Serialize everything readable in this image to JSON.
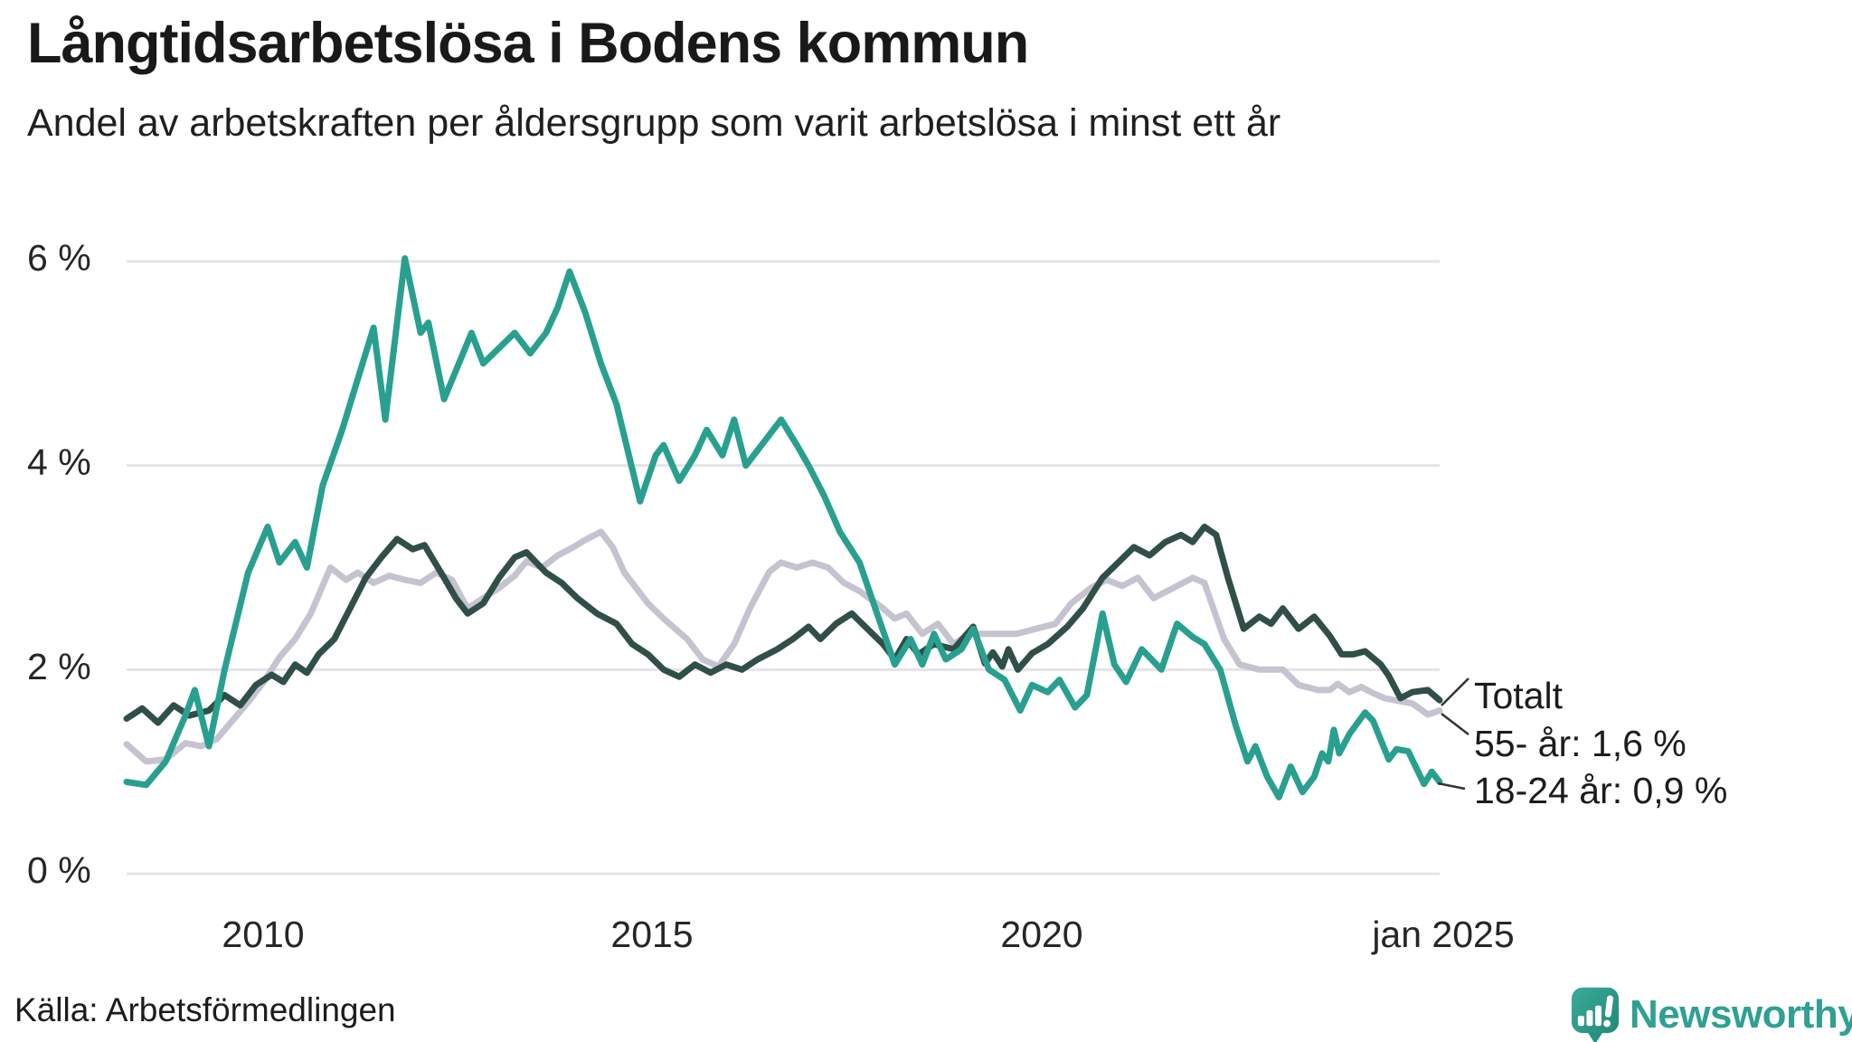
{
  "header": {
    "title": "Långtidsarbetslösa i Bodens kommun",
    "subtitle": "Andel av arbetskraften per åldersgrupp som varit arbetslösa i minst ett år"
  },
  "footer": {
    "source": "Källa: Arbetsförmedlingen",
    "brand": "Newsworthy",
    "logo_icon": "speech-bubble-bar-chart-icon"
  },
  "colors": {
    "teal": "#29A08F",
    "dark": "#2F4F48",
    "gray": "#C6C3D1",
    "grid": "#E4E4E8",
    "connector": "#333333",
    "text": "#1c1c1c",
    "brand_teal": "#2FA092",
    "brand_teal_dark": "#1F8577"
  },
  "chart_data": {
    "type": "line",
    "title": "Långtidsarbetslösa i Bodens kommun",
    "subtitle": "Andel av arbetskraften per åldersgrupp som varit arbetslösa i minst ett år",
    "xlabel": "",
    "ylabel": "",
    "unit": "%",
    "grid": true,
    "legend_position": "right-annotations",
    "ylim": [
      0,
      6.4
    ],
    "x_range": [
      2008.25,
      2025.0
    ],
    "y_ticks": [
      {
        "value": 6,
        "label": "6 %"
      },
      {
        "value": 4,
        "label": "4 %"
      },
      {
        "value": 2,
        "label": "2 %"
      },
      {
        "value": 0,
        "label": "0 %"
      }
    ],
    "x_ticks": [
      {
        "value": 2010,
        "label": "2010"
      },
      {
        "value": 2015,
        "label": "2015"
      },
      {
        "value": 2020,
        "label": "2020"
      },
      {
        "value": 2025,
        "label": "jan 2025"
      }
    ],
    "annotations": [
      {
        "series": "Totalt",
        "label": "Totalt"
      },
      {
        "series": "55- år",
        "label": "55- år: 1,6 %",
        "end_value": 1.6
      },
      {
        "series": "18-24 år",
        "label": "18-24 år: 0,9 %",
        "end_value": 0.9
      }
    ],
    "series": [
      {
        "name": "55- år",
        "color_key": "gray",
        "end_label": "55- år: 1,6 %",
        "points": [
          [
            2008.25,
            1.27
          ],
          [
            2008.5,
            1.1
          ],
          [
            2008.75,
            1.12
          ],
          [
            2009.0,
            1.28
          ],
          [
            2009.2,
            1.25
          ],
          [
            2009.4,
            1.32
          ],
          [
            2009.6,
            1.5
          ],
          [
            2009.8,
            1.68
          ],
          [
            2010.0,
            1.88
          ],
          [
            2010.2,
            2.12
          ],
          [
            2010.4,
            2.3
          ],
          [
            2010.6,
            2.55
          ],
          [
            2010.85,
            3.0
          ],
          [
            2011.05,
            2.88
          ],
          [
            2011.2,
            2.95
          ],
          [
            2011.4,
            2.85
          ],
          [
            2011.6,
            2.92
          ],
          [
            2011.8,
            2.88
          ],
          [
            2012.0,
            2.85
          ],
          [
            2012.2,
            2.95
          ],
          [
            2012.4,
            2.88
          ],
          [
            2012.6,
            2.6
          ],
          [
            2012.8,
            2.7
          ],
          [
            2013.0,
            2.8
          ],
          [
            2013.2,
            2.92
          ],
          [
            2013.35,
            3.06
          ],
          [
            2013.55,
            3.0
          ],
          [
            2013.75,
            3.12
          ],
          [
            2013.95,
            3.2
          ],
          [
            2014.1,
            3.27
          ],
          [
            2014.3,
            3.35
          ],
          [
            2014.45,
            3.2
          ],
          [
            2014.6,
            2.95
          ],
          [
            2014.9,
            2.65
          ],
          [
            2015.1,
            2.5
          ],
          [
            2015.4,
            2.3
          ],
          [
            2015.6,
            2.1
          ],
          [
            2015.8,
            2.03
          ],
          [
            2016.0,
            2.25
          ],
          [
            2016.2,
            2.6
          ],
          [
            2016.45,
            2.96
          ],
          [
            2016.6,
            3.05
          ],
          [
            2016.8,
            3.0
          ],
          [
            2017.0,
            3.05
          ],
          [
            2017.2,
            3.0
          ],
          [
            2017.4,
            2.85
          ],
          [
            2017.6,
            2.77
          ],
          [
            2017.9,
            2.6
          ],
          [
            2018.05,
            2.5
          ],
          [
            2018.2,
            2.55
          ],
          [
            2018.4,
            2.35
          ],
          [
            2018.6,
            2.45
          ],
          [
            2018.8,
            2.25
          ],
          [
            2019.0,
            2.35
          ],
          [
            2019.3,
            2.35
          ],
          [
            2019.6,
            2.35
          ],
          [
            2019.85,
            2.4
          ],
          [
            2020.1,
            2.45
          ],
          [
            2020.3,
            2.65
          ],
          [
            2020.55,
            2.8
          ],
          [
            2020.75,
            2.88
          ],
          [
            2020.95,
            2.82
          ],
          [
            2021.15,
            2.9
          ],
          [
            2021.35,
            2.7
          ],
          [
            2021.6,
            2.8
          ],
          [
            2021.85,
            2.9
          ],
          [
            2022.0,
            2.85
          ],
          [
            2022.25,
            2.3
          ],
          [
            2022.45,
            2.05
          ],
          [
            2022.7,
            2.0
          ],
          [
            2023.0,
            2.0
          ],
          [
            2023.2,
            1.85
          ],
          [
            2023.45,
            1.8
          ],
          [
            2023.6,
            1.8
          ],
          [
            2023.7,
            1.86
          ],
          [
            2023.85,
            1.78
          ],
          [
            2024.0,
            1.83
          ],
          [
            2024.15,
            1.77
          ],
          [
            2024.3,
            1.72
          ],
          [
            2024.5,
            1.69
          ],
          [
            2024.65,
            1.67
          ],
          [
            2024.85,
            1.56
          ],
          [
            2025.0,
            1.6
          ]
        ]
      },
      {
        "name": "Totalt",
        "color_key": "dark",
        "end_label": "Totalt",
        "points": [
          [
            2008.25,
            1.52
          ],
          [
            2008.45,
            1.62
          ],
          [
            2008.65,
            1.48
          ],
          [
            2008.85,
            1.65
          ],
          [
            2009.05,
            1.55
          ],
          [
            2009.3,
            1.6
          ],
          [
            2009.5,
            1.75
          ],
          [
            2009.7,
            1.65
          ],
          [
            2009.9,
            1.85
          ],
          [
            2010.1,
            1.95
          ],
          [
            2010.25,
            1.88
          ],
          [
            2010.4,
            2.05
          ],
          [
            2010.55,
            1.97
          ],
          [
            2010.7,
            2.15
          ],
          [
            2010.9,
            2.3
          ],
          [
            2011.1,
            2.6
          ],
          [
            2011.3,
            2.9
          ],
          [
            2011.5,
            3.1
          ],
          [
            2011.7,
            3.28
          ],
          [
            2011.9,
            3.18
          ],
          [
            2012.05,
            3.22
          ],
          [
            2012.3,
            2.9
          ],
          [
            2012.45,
            2.7
          ],
          [
            2012.6,
            2.55
          ],
          [
            2012.8,
            2.65
          ],
          [
            2013.0,
            2.9
          ],
          [
            2013.2,
            3.1
          ],
          [
            2013.35,
            3.15
          ],
          [
            2013.6,
            2.95
          ],
          [
            2013.8,
            2.85
          ],
          [
            2014.0,
            2.7
          ],
          [
            2014.25,
            2.55
          ],
          [
            2014.5,
            2.45
          ],
          [
            2014.7,
            2.25
          ],
          [
            2014.9,
            2.15
          ],
          [
            2015.1,
            2.0
          ],
          [
            2015.3,
            1.93
          ],
          [
            2015.5,
            2.05
          ],
          [
            2015.7,
            1.97
          ],
          [
            2015.9,
            2.05
          ],
          [
            2016.1,
            2.0
          ],
          [
            2016.3,
            2.1
          ],
          [
            2016.55,
            2.2
          ],
          [
            2016.75,
            2.3
          ],
          [
            2016.95,
            2.42
          ],
          [
            2017.1,
            2.3
          ],
          [
            2017.3,
            2.45
          ],
          [
            2017.5,
            2.55
          ],
          [
            2017.7,
            2.4
          ],
          [
            2017.9,
            2.25
          ],
          [
            2018.05,
            2.1
          ],
          [
            2018.2,
            2.3
          ],
          [
            2018.35,
            2.15
          ],
          [
            2018.55,
            2.25
          ],
          [
            2018.8,
            2.2
          ],
          [
            2019.05,
            2.42
          ],
          [
            2019.2,
            2.06
          ],
          [
            2019.3,
            2.17
          ],
          [
            2019.42,
            2.03
          ],
          [
            2019.5,
            2.2
          ],
          [
            2019.62,
            2.0
          ],
          [
            2019.8,
            2.16
          ],
          [
            2020.0,
            2.25
          ],
          [
            2020.25,
            2.42
          ],
          [
            2020.45,
            2.6
          ],
          [
            2020.7,
            2.9
          ],
          [
            2020.9,
            3.05
          ],
          [
            2021.1,
            3.2
          ],
          [
            2021.3,
            3.12
          ],
          [
            2021.5,
            3.25
          ],
          [
            2021.7,
            3.32
          ],
          [
            2021.85,
            3.25
          ],
          [
            2022.0,
            3.4
          ],
          [
            2022.15,
            3.32
          ],
          [
            2022.3,
            2.9
          ],
          [
            2022.5,
            2.4
          ],
          [
            2022.7,
            2.52
          ],
          [
            2022.85,
            2.45
          ],
          [
            2023.0,
            2.6
          ],
          [
            2023.2,
            2.4
          ],
          [
            2023.4,
            2.52
          ],
          [
            2023.6,
            2.33
          ],
          [
            2023.75,
            2.15
          ],
          [
            2023.9,
            2.15
          ],
          [
            2024.05,
            2.18
          ],
          [
            2024.25,
            2.05
          ],
          [
            2024.35,
            1.94
          ],
          [
            2024.5,
            1.72
          ],
          [
            2024.65,
            1.78
          ],
          [
            2024.85,
            1.8
          ],
          [
            2025.0,
            1.7
          ]
        ]
      },
      {
        "name": "18-24 år",
        "color_key": "teal",
        "end_label": "18-24 år: 0,9 %",
        "points": [
          [
            2008.25,
            0.9
          ],
          [
            2008.5,
            0.87
          ],
          [
            2008.75,
            1.1
          ],
          [
            2009.0,
            1.55
          ],
          [
            2009.12,
            1.8
          ],
          [
            2009.3,
            1.25
          ],
          [
            2009.5,
            2.0
          ],
          [
            2009.8,
            2.95
          ],
          [
            2010.05,
            3.4
          ],
          [
            2010.2,
            3.05
          ],
          [
            2010.4,
            3.25
          ],
          [
            2010.55,
            3.0
          ],
          [
            2010.75,
            3.8
          ],
          [
            2011.0,
            4.35
          ],
          [
            2011.2,
            4.85
          ],
          [
            2011.4,
            5.35
          ],
          [
            2011.55,
            4.45
          ],
          [
            2011.8,
            6.03
          ],
          [
            2012.0,
            5.3
          ],
          [
            2012.1,
            5.4
          ],
          [
            2012.3,
            4.65
          ],
          [
            2012.65,
            5.3
          ],
          [
            2012.8,
            5.0
          ],
          [
            2013.0,
            5.15
          ],
          [
            2013.2,
            5.3
          ],
          [
            2013.4,
            5.1
          ],
          [
            2013.6,
            5.3
          ],
          [
            2013.75,
            5.55
          ],
          [
            2013.9,
            5.9
          ],
          [
            2014.1,
            5.5
          ],
          [
            2014.3,
            5.0
          ],
          [
            2014.5,
            4.6
          ],
          [
            2014.8,
            3.65
          ],
          [
            2015.0,
            4.1
          ],
          [
            2015.1,
            4.2
          ],
          [
            2015.3,
            3.85
          ],
          [
            2015.5,
            4.1
          ],
          [
            2015.65,
            4.35
          ],
          [
            2015.85,
            4.1
          ],
          [
            2016.0,
            4.45
          ],
          [
            2016.15,
            4.0
          ],
          [
            2016.3,
            4.15
          ],
          [
            2016.45,
            4.3
          ],
          [
            2016.6,
            4.45
          ],
          [
            2016.8,
            4.2
          ],
          [
            2016.95,
            4.0
          ],
          [
            2017.15,
            3.7
          ],
          [
            2017.35,
            3.35
          ],
          [
            2017.6,
            3.05
          ],
          [
            2017.8,
            2.6
          ],
          [
            2018.05,
            2.05
          ],
          [
            2018.25,
            2.3
          ],
          [
            2018.4,
            2.05
          ],
          [
            2018.55,
            2.35
          ],
          [
            2018.7,
            2.1
          ],
          [
            2018.9,
            2.2
          ],
          [
            2019.05,
            2.4
          ],
          [
            2019.25,
            2.0
          ],
          [
            2019.45,
            1.9
          ],
          [
            2019.65,
            1.6
          ],
          [
            2019.8,
            1.85
          ],
          [
            2020.0,
            1.78
          ],
          [
            2020.15,
            1.9
          ],
          [
            2020.35,
            1.63
          ],
          [
            2020.5,
            1.75
          ],
          [
            2020.7,
            2.55
          ],
          [
            2020.85,
            2.05
          ],
          [
            2021.0,
            1.88
          ],
          [
            2021.2,
            2.2
          ],
          [
            2021.45,
            2.0
          ],
          [
            2021.65,
            2.45
          ],
          [
            2021.85,
            2.32
          ],
          [
            2022.0,
            2.25
          ],
          [
            2022.2,
            2.0
          ],
          [
            2022.4,
            1.45
          ],
          [
            2022.55,
            1.1
          ],
          [
            2022.65,
            1.25
          ],
          [
            2022.8,
            0.95
          ],
          [
            2022.95,
            0.75
          ],
          [
            2023.1,
            1.05
          ],
          [
            2023.25,
            0.8
          ],
          [
            2023.4,
            0.95
          ],
          [
            2023.5,
            1.18
          ],
          [
            2023.58,
            1.1
          ],
          [
            2023.65,
            1.41
          ],
          [
            2023.72,
            1.18
          ],
          [
            2023.85,
            1.37
          ],
          [
            2024.05,
            1.58
          ],
          [
            2024.15,
            1.5
          ],
          [
            2024.35,
            1.12
          ],
          [
            2024.45,
            1.22
          ],
          [
            2024.6,
            1.2
          ],
          [
            2024.8,
            0.88
          ],
          [
            2024.9,
            1.0
          ],
          [
            2025.0,
            0.9
          ]
        ]
      }
    ]
  }
}
